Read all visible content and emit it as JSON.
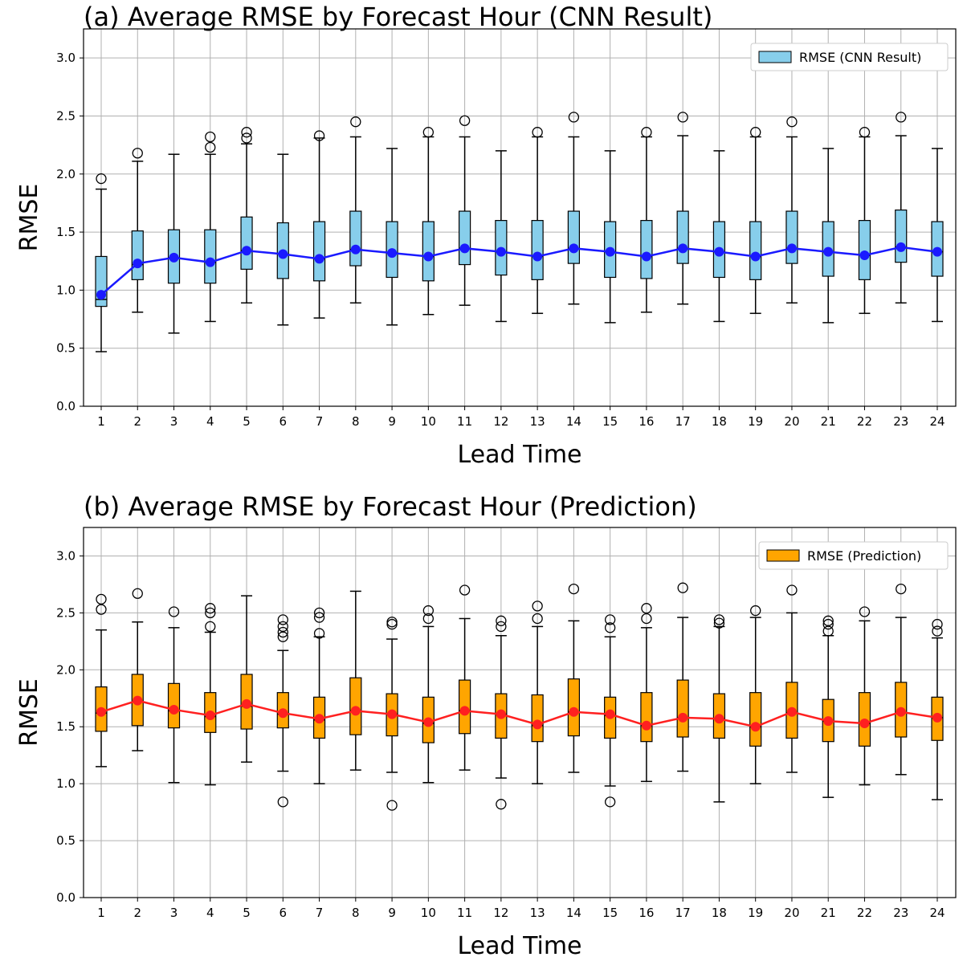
{
  "chart_data": [
    {
      "type": "box",
      "title": "(a) Average RMSE by Forecast Hour (CNN Result)",
      "xlabel": "Lead Time",
      "ylabel": "RMSE",
      "ylim": [
        0,
        3.25
      ],
      "yticks": [
        "0.0",
        "0.5",
        "1.0",
        "1.5",
        "2.0",
        "2.5",
        "3.0"
      ],
      "categories": [
        "1",
        "2",
        "3",
        "4",
        "5",
        "6",
        "7",
        "8",
        "9",
        "10",
        "11",
        "12",
        "13",
        "14",
        "15",
        "16",
        "17",
        "18",
        "19",
        "20",
        "21",
        "22",
        "23",
        "24"
      ],
      "grid": true,
      "legend": {
        "placement": "top-right",
        "label": "RMSE (CNN Result)"
      },
      "colors": {
        "box": "#87ceeb",
        "mean_line": "#1a1aff"
      },
      "series": [
        {
          "name": "RMSE (CNN Result)",
          "boxes": [
            {
              "whislo": 0.47,
              "q1": 0.86,
              "med": 0.92,
              "q3": 1.29,
              "whishi": 1.87,
              "fliers": [
                1.96
              ]
            },
            {
              "whislo": 0.81,
              "q1": 1.09,
              "med": 1.22,
              "q3": 1.51,
              "whishi": 2.11,
              "fliers": [
                2.18
              ]
            },
            {
              "whislo": 0.63,
              "q1": 1.06,
              "med": 1.28,
              "q3": 1.52,
              "whishi": 2.17,
              "fliers": []
            },
            {
              "whislo": 0.73,
              "q1": 1.06,
              "med": 1.24,
              "q3": 1.52,
              "whishi": 2.17,
              "fliers": [
                2.23,
                2.32
              ]
            },
            {
              "whislo": 0.89,
              "q1": 1.18,
              "med": 1.34,
              "q3": 1.63,
              "whishi": 2.26,
              "fliers": [
                2.31,
                2.36
              ]
            },
            {
              "whislo": 0.7,
              "q1": 1.1,
              "med": 1.31,
              "q3": 1.58,
              "whishi": 2.17,
              "fliers": []
            },
            {
              "whislo": 0.76,
              "q1": 1.08,
              "med": 1.27,
              "q3": 1.59,
              "whishi": 2.31,
              "fliers": [
                2.33
              ]
            },
            {
              "whislo": 0.89,
              "q1": 1.21,
              "med": 1.35,
              "q3": 1.68,
              "whishi": 2.32,
              "fliers": [
                2.45
              ]
            },
            {
              "whislo": 0.7,
              "q1": 1.11,
              "med": 1.32,
              "q3": 1.59,
              "whishi": 2.22,
              "fliers": []
            },
            {
              "whislo": 0.79,
              "q1": 1.08,
              "med": 1.29,
              "q3": 1.59,
              "whishi": 2.32,
              "fliers": [
                2.36
              ]
            },
            {
              "whislo": 0.87,
              "q1": 1.22,
              "med": 1.36,
              "q3": 1.68,
              "whishi": 2.32,
              "fliers": [
                2.46
              ]
            },
            {
              "whislo": 0.73,
              "q1": 1.13,
              "med": 1.33,
              "q3": 1.6,
              "whishi": 2.2,
              "fliers": []
            },
            {
              "whislo": 0.8,
              "q1": 1.09,
              "med": 1.29,
              "q3": 1.6,
              "whishi": 2.32,
              "fliers": [
                2.36
              ]
            },
            {
              "whislo": 0.88,
              "q1": 1.23,
              "med": 1.36,
              "q3": 1.68,
              "whishi": 2.32,
              "fliers": [
                2.49
              ]
            },
            {
              "whislo": 0.72,
              "q1": 1.11,
              "med": 1.33,
              "q3": 1.59,
              "whishi": 2.2,
              "fliers": []
            },
            {
              "whislo": 0.81,
              "q1": 1.1,
              "med": 1.29,
              "q3": 1.6,
              "whishi": 2.32,
              "fliers": [
                2.36
              ]
            },
            {
              "whislo": 0.88,
              "q1": 1.23,
              "med": 1.36,
              "q3": 1.68,
              "whishi": 2.33,
              "fliers": [
                2.49
              ]
            },
            {
              "whislo": 0.73,
              "q1": 1.11,
              "med": 1.33,
              "q3": 1.59,
              "whishi": 2.2,
              "fliers": []
            },
            {
              "whislo": 0.8,
              "q1": 1.09,
              "med": 1.29,
              "q3": 1.59,
              "whishi": 2.32,
              "fliers": [
                2.36
              ]
            },
            {
              "whislo": 0.89,
              "q1": 1.23,
              "med": 1.36,
              "q3": 1.68,
              "whishi": 2.32,
              "fliers": [
                2.45
              ]
            },
            {
              "whislo": 0.72,
              "q1": 1.12,
              "med": 1.33,
              "q3": 1.59,
              "whishi": 2.22,
              "fliers": []
            },
            {
              "whislo": 0.8,
              "q1": 1.09,
              "med": 1.3,
              "q3": 1.6,
              "whishi": 2.32,
              "fliers": [
                2.36
              ]
            },
            {
              "whislo": 0.89,
              "q1": 1.24,
              "med": 1.37,
              "q3": 1.69,
              "whishi": 2.33,
              "fliers": [
                2.49
              ]
            },
            {
              "whislo": 0.73,
              "q1": 1.12,
              "med": 1.33,
              "q3": 1.59,
              "whishi": 2.22,
              "fliers": []
            }
          ],
          "means": [
            0.96,
            1.23,
            1.28,
            1.24,
            1.34,
            1.31,
            1.27,
            1.35,
            1.32,
            1.29,
            1.36,
            1.33,
            1.29,
            1.36,
            1.33,
            1.29,
            1.36,
            1.33,
            1.29,
            1.36,
            1.33,
            1.3,
            1.37,
            1.33
          ]
        }
      ]
    },
    {
      "type": "box",
      "title": "(b) Average RMSE by Forecast Hour (Prediction)",
      "xlabel": "Lead Time",
      "ylabel": "RMSE",
      "ylim": [
        0,
        3.25
      ],
      "yticks": [
        "0.0",
        "0.5",
        "1.0",
        "1.5",
        "2.0",
        "2.5",
        "3.0"
      ],
      "categories": [
        "1",
        "2",
        "3",
        "4",
        "5",
        "6",
        "7",
        "8",
        "9",
        "10",
        "11",
        "12",
        "13",
        "14",
        "15",
        "16",
        "17",
        "18",
        "19",
        "20",
        "21",
        "22",
        "23",
        "24"
      ],
      "grid": true,
      "legend": {
        "placement": "top-right",
        "label": "RMSE (Prediction)"
      },
      "colors": {
        "box": "#ffa500",
        "mean_line": "#ff2020"
      },
      "series": [
        {
          "name": "RMSE (Prediction)",
          "boxes": [
            {
              "whislo": 1.15,
              "q1": 1.46,
              "med": 1.62,
              "q3": 1.85,
              "whishi": 2.35,
              "fliers": [
                2.53,
                2.62
              ]
            },
            {
              "whislo": 1.29,
              "q1": 1.51,
              "med": 1.72,
              "q3": 1.96,
              "whishi": 2.42,
              "fliers": [
                2.67
              ]
            },
            {
              "whislo": 1.01,
              "q1": 1.49,
              "med": 1.64,
              "q3": 1.88,
              "whishi": 2.37,
              "fliers": [
                2.51
              ]
            },
            {
              "whislo": 0.99,
              "q1": 1.45,
              "med": 1.59,
              "q3": 1.8,
              "whishi": 2.33,
              "fliers": [
                2.38,
                2.5,
                2.54
              ]
            },
            {
              "whislo": 1.19,
              "q1": 1.48,
              "med": 1.68,
              "q3": 1.96,
              "whishi": 2.65,
              "fliers": []
            },
            {
              "whislo": 1.11,
              "q1": 1.49,
              "med": 1.61,
              "q3": 1.8,
              "whishi": 2.17,
              "fliers": [
                0.84,
                2.29,
                2.33,
                2.38,
                2.44
              ]
            },
            {
              "whislo": 1.0,
              "q1": 1.4,
              "med": 1.56,
              "q3": 1.76,
              "whishi": 2.29,
              "fliers": [
                2.32,
                2.46,
                2.5
              ]
            },
            {
              "whislo": 1.12,
              "q1": 1.43,
              "med": 1.64,
              "q3": 1.93,
              "whishi": 2.69,
              "fliers": []
            },
            {
              "whislo": 1.1,
              "q1": 1.42,
              "med": 1.61,
              "q3": 1.79,
              "whishi": 2.27,
              "fliers": [
                0.81,
                2.4,
                2.42
              ]
            },
            {
              "whislo": 1.01,
              "q1": 1.36,
              "med": 1.53,
              "q3": 1.76,
              "whishi": 2.38,
              "fliers": [
                2.45,
                2.52
              ]
            },
            {
              "whislo": 1.12,
              "q1": 1.44,
              "med": 1.64,
              "q3": 1.91,
              "whishi": 2.45,
              "fliers": [
                2.7
              ]
            },
            {
              "whislo": 1.05,
              "q1": 1.4,
              "med": 1.61,
              "q3": 1.79,
              "whishi": 2.3,
              "fliers": [
                0.82,
                2.38,
                2.43
              ]
            },
            {
              "whislo": 1.0,
              "q1": 1.37,
              "med": 1.51,
              "q3": 1.78,
              "whishi": 2.38,
              "fliers": [
                2.45,
                2.56
              ]
            },
            {
              "whislo": 1.1,
              "q1": 1.42,
              "med": 1.63,
              "q3": 1.92,
              "whishi": 2.43,
              "fliers": [
                2.71
              ]
            },
            {
              "whislo": 0.98,
              "q1": 1.4,
              "med": 1.6,
              "q3": 1.76,
              "whishi": 2.29,
              "fliers": [
                0.84,
                2.37,
                2.44
              ]
            },
            {
              "whislo": 1.02,
              "q1": 1.37,
              "med": 1.51,
              "q3": 1.8,
              "whishi": 2.37,
              "fliers": [
                2.45,
                2.54
              ]
            },
            {
              "whislo": 1.11,
              "q1": 1.41,
              "med": 1.58,
              "q3": 1.91,
              "whishi": 2.46,
              "fliers": [
                2.72
              ]
            },
            {
              "whislo": 0.84,
              "q1": 1.4,
              "med": 1.57,
              "q3": 1.79,
              "whishi": 2.38,
              "fliers": [
                2.41,
                2.44
              ]
            },
            {
              "whislo": 1.0,
              "q1": 1.33,
              "med": 1.5,
              "q3": 1.8,
              "whishi": 2.46,
              "fliers": [
                2.52
              ]
            },
            {
              "whislo": 1.1,
              "q1": 1.4,
              "med": 1.62,
              "q3": 1.89,
              "whishi": 2.5,
              "fliers": [
                2.7
              ]
            },
            {
              "whislo": 0.88,
              "q1": 1.37,
              "med": 1.55,
              "q3": 1.74,
              "whishi": 2.3,
              "fliers": [
                2.34,
                2.4,
                2.43
              ]
            },
            {
              "whislo": 0.99,
              "q1": 1.33,
              "med": 1.53,
              "q3": 1.8,
              "whishi": 2.43,
              "fliers": [
                2.51
              ]
            },
            {
              "whislo": 1.08,
              "q1": 1.41,
              "med": 1.62,
              "q3": 1.89,
              "whishi": 2.46,
              "fliers": [
                2.71
              ]
            },
            {
              "whislo": 0.86,
              "q1": 1.38,
              "med": 1.58,
              "q3": 1.76,
              "whishi": 2.28,
              "fliers": [
                2.34,
                2.4
              ]
            }
          ],
          "means": [
            1.63,
            1.73,
            1.65,
            1.6,
            1.7,
            1.62,
            1.57,
            1.64,
            1.61,
            1.54,
            1.64,
            1.61,
            1.52,
            1.63,
            1.61,
            1.51,
            1.58,
            1.57,
            1.5,
            1.63,
            1.55,
            1.53,
            1.63,
            1.58
          ]
        }
      ]
    }
  ]
}
